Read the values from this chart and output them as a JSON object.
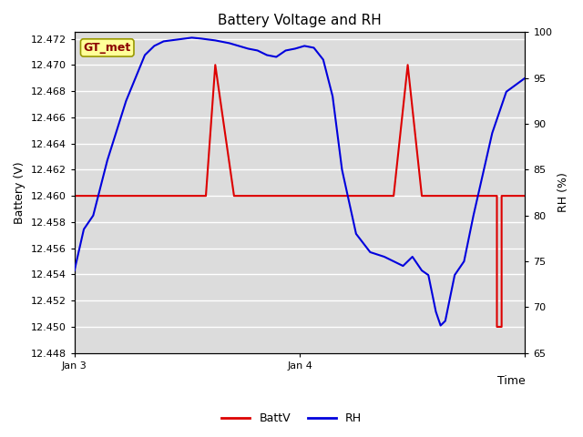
{
  "title": "Battery Voltage and RH",
  "ylabel_left": "Battery (V)",
  "ylabel_right": "RH (%)",
  "xlabel": "Time",
  "annotation_text": "GT_met",
  "ylim_left": [
    12.448,
    12.4725
  ],
  "ylim_right": [
    65,
    100
  ],
  "yticks_left": [
    12.448,
    12.45,
    12.452,
    12.454,
    12.456,
    12.458,
    12.46,
    12.462,
    12.464,
    12.466,
    12.468,
    12.47,
    12.472
  ],
  "yticks_right": [
    65,
    70,
    75,
    80,
    85,
    90,
    95,
    100
  ],
  "background_color": "#dcdcdc",
  "grid_color": "#ffffff",
  "fig_color": "#ffffff",
  "batt_color": "#dd0000",
  "rh_color": "#0000dd",
  "legend_batt": "BattV",
  "legend_rh": "RH",
  "batt_data_t": [
    0,
    2,
    2,
    14,
    14,
    15,
    15,
    17,
    17,
    34,
    34,
    35.5,
    35.5,
    37,
    37,
    43.5,
    43.5,
    44,
    44,
    44.5,
    44.5,
    45,
    45,
    45.5,
    45.5,
    46,
    46,
    48
  ],
  "batt_data_y": [
    12.46,
    12.46,
    12.46,
    12.46,
    12.46,
    12.47,
    12.47,
    12.46,
    12.46,
    12.46,
    12.46,
    12.47,
    12.47,
    12.46,
    12.46,
    12.46,
    12.46,
    12.46,
    12.46,
    12.46,
    12.46,
    12.46,
    12.45,
    12.45,
    12.46,
    12.46,
    12.46,
    12.46
  ],
  "rh_data_t": [
    0,
    1.0,
    2.0,
    3.5,
    5.5,
    7.5,
    8.5,
    9.5,
    11.0,
    12.5,
    13.5,
    15.0,
    16.5,
    17.5,
    18.5,
    19.5,
    20.5,
    21.5,
    22.5,
    23.5,
    24.5,
    25.5,
    26.5,
    27.5,
    28.5,
    30.0,
    31.5,
    33.0,
    34.0,
    35.0,
    36.0,
    37.0,
    37.7,
    38.5,
    39.0,
    39.5,
    40.5,
    41.5,
    42.5,
    43.5,
    44.5,
    46.0,
    48.0
  ],
  "rh_data_y": [
    74.0,
    78.5,
    80.0,
    86.0,
    92.5,
    97.5,
    98.5,
    99.0,
    99.2,
    99.4,
    99.3,
    99.1,
    98.8,
    98.5,
    98.2,
    98.0,
    97.5,
    97.3,
    98.0,
    98.2,
    98.5,
    98.3,
    97.0,
    93.0,
    85.0,
    78.0,
    76.0,
    75.5,
    75.0,
    74.5,
    75.5,
    74.0,
    73.5,
    69.5,
    68.0,
    68.5,
    73.5,
    75.0,
    80.0,
    84.5,
    89.0,
    93.5,
    95.0
  ],
  "xlim": [
    0,
    48
  ],
  "xtick_vals": [
    0,
    24,
    48
  ],
  "xtick_labels": [
    "Jan 3",
    "Jan 4",
    ""
  ],
  "title_fontsize": 11,
  "axis_fontsize": 9,
  "tick_fontsize": 8
}
